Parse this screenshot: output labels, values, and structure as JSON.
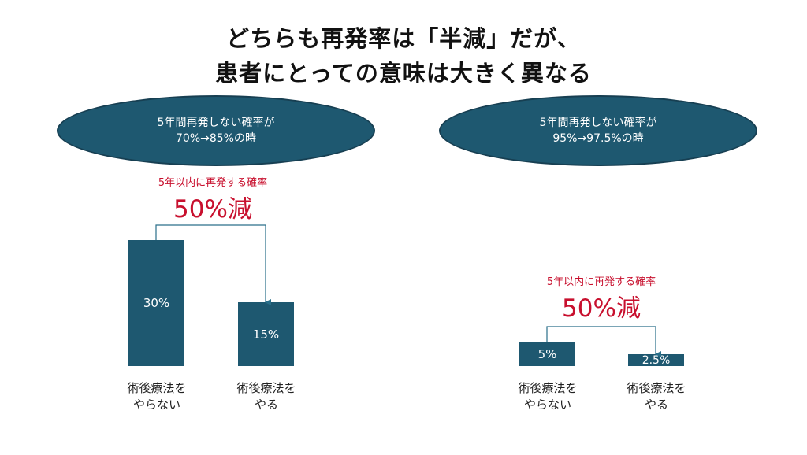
{
  "title": {
    "line1": "どちらも再発率は「半減」だが、",
    "line2": "患者にとっての意味は大きく異なる"
  },
  "left": {
    "oval": {
      "line1": "5年間再発しない確率が",
      "line2": "70%→85%の時"
    },
    "reduction_caption": "5年以内に再発する確率",
    "reduction_value": "50%減",
    "bars": [
      {
        "value_label": "30%",
        "label_line1": "術後療法を",
        "label_line2": "やらない"
      },
      {
        "value_label": "15%",
        "label_line1": "術後療法を",
        "label_line2": "やる"
      }
    ]
  },
  "right": {
    "oval": {
      "line1": "5年間再発しない確率が",
      "line2": "95%→97.5%の時"
    },
    "reduction_caption": "5年以内に再発する確率",
    "reduction_value": "50%減",
    "bars": [
      {
        "value_label": "5%",
        "label_line1": "術後療法を",
        "label_line2": "やらない"
      },
      {
        "value_label": "2.5%",
        "label_line1": "術後療法を",
        "label_line2": "やる"
      }
    ]
  },
  "chart_data": [
    {
      "type": "bar",
      "categories": [
        "術後療法をやらない",
        "術後療法をやる"
      ],
      "values": [
        30,
        15
      ],
      "title": "",
      "xlabel": "",
      "ylabel": ""
    },
    {
      "type": "bar",
      "categories": [
        "術後療法をやらない",
        "術後療法をやる"
      ],
      "values": [
        5,
        2.5
      ],
      "title": "",
      "xlabel": "",
      "ylabel": ""
    }
  ],
  "colors": {
    "bar": "#1e5870",
    "oval": "#1e5870",
    "accent_red": "#c8102e",
    "arrow": "#2a6f8a"
  }
}
